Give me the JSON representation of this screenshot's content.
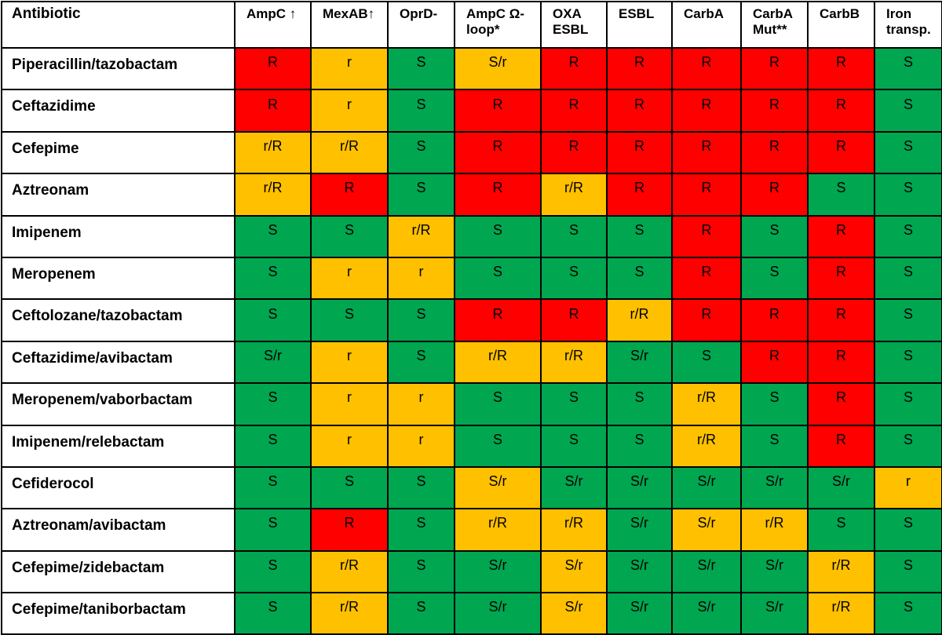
{
  "chart_data": {
    "type": "table",
    "corner_label": "Antibiotic",
    "columns": [
      "AmpC ↑",
      "MexAB↑",
      "OprD-",
      "AmpC Ω-loop*",
      "OXA ESBL",
      "ESBL",
      "CarbA",
      "CarbA Mut**",
      "CarbB",
      "Iron transp."
    ],
    "rows": [
      {
        "name": "Piperacillin/tazobactam",
        "values": [
          "R",
          "r",
          "S",
          "S/r",
          "R",
          "R",
          "R",
          "R",
          "R",
          "S"
        ]
      },
      {
        "name": "Ceftazidime",
        "values": [
          "R",
          "r",
          "S",
          "R",
          "R",
          "R",
          "R",
          "R",
          "R",
          "S"
        ]
      },
      {
        "name": "Cefepime",
        "values": [
          "r/R",
          "r/R",
          "S",
          "R",
          "R",
          "R",
          "R",
          "R",
          "R",
          "S"
        ]
      },
      {
        "name": "Aztreonam",
        "values": [
          "r/R",
          "R",
          "S",
          "R",
          "r/R",
          "R",
          "R",
          "R",
          "S",
          "S"
        ]
      },
      {
        "name": "Imipenem",
        "values": [
          "S",
          "S",
          "r/R",
          "S",
          "S",
          "S",
          "R",
          "S",
          "R",
          "S"
        ]
      },
      {
        "name": "Meropenem",
        "values": [
          "S",
          "r",
          "r",
          "S",
          "S",
          "S",
          "R",
          "S",
          "R",
          "S"
        ]
      },
      {
        "name": "Ceftolozane/tazobactam",
        "values": [
          "S",
          "S",
          "S",
          "R",
          "R",
          "r/R",
          "R",
          "R",
          "R",
          "S"
        ]
      },
      {
        "name": "Ceftazidime/avibactam",
        "values": [
          "S/r",
          "r",
          "S",
          "r/R",
          "r/R",
          "S/r",
          "S",
          "R",
          "R",
          "S"
        ]
      },
      {
        "name": "Meropenem/vaborbactam",
        "values": [
          "S",
          "r",
          "r",
          "S",
          "S",
          "S",
          "r/R",
          "S",
          "R",
          "S"
        ]
      },
      {
        "name": "Imipenem/relebactam",
        "values": [
          "S",
          "r",
          "r",
          "S",
          "S",
          "S",
          "r/R",
          "S",
          "R",
          "S"
        ]
      },
      {
        "name": "Cefiderocol",
        "values": [
          "S",
          "S",
          "S",
          "S/r",
          "S/r",
          "S/r",
          "S/r",
          "S/r",
          "S/r",
          "r"
        ]
      },
      {
        "name": "Aztreonam/avibactam",
        "values": [
          "S",
          "R",
          "S",
          "r/R",
          "r/R",
          "S/r",
          "S/r",
          "r/R",
          "S",
          "S"
        ]
      },
      {
        "name": "Cefepime/zidebactam",
        "values": [
          "S",
          "r/R",
          "S",
          "S/r",
          "S/r",
          "S/r",
          "S/r",
          "S/r",
          "r/R",
          "S"
        ]
      },
      {
        "name": "Cefepime/taniborbactam",
        "values": [
          "S",
          "r/R",
          "S",
          "S/r",
          "S/r",
          "S/r",
          "S/r",
          "S/r",
          "r/R",
          "S"
        ]
      }
    ],
    "cell_colors": {
      "R": "#ff0000",
      "r/R": "#ffc000",
      "r": "#ffc000",
      "S/r": "#ffc000",
      "S": "#00a650"
    },
    "cell_color_overrides": [
      {
        "row": 7,
        "col": 0,
        "color": "#00a650"
      },
      {
        "row": 7,
        "col": 5,
        "color": "#00a650"
      },
      {
        "row": 10,
        "col": 4,
        "color": "#00a650"
      },
      {
        "row": 10,
        "col": 5,
        "color": "#00a650"
      },
      {
        "row": 10,
        "col": 6,
        "color": "#00a650"
      },
      {
        "row": 10,
        "col": 7,
        "color": "#00a650"
      },
      {
        "row": 10,
        "col": 8,
        "color": "#00a650"
      },
      {
        "row": 11,
        "col": 5,
        "color": "#00a650"
      },
      {
        "row": 12,
        "col": 3,
        "color": "#00a650"
      },
      {
        "row": 12,
        "col": 5,
        "color": "#00a650"
      },
      {
        "row": 12,
        "col": 6,
        "color": "#00a650"
      },
      {
        "row": 12,
        "col": 7,
        "color": "#00a650"
      },
      {
        "row": 13,
        "col": 3,
        "color": "#00a650"
      },
      {
        "row": 13,
        "col": 5,
        "color": "#00a650"
      },
      {
        "row": 13,
        "col": 6,
        "color": "#00a650"
      },
      {
        "row": 13,
        "col": 7,
        "color": "#00a650"
      }
    ]
  }
}
